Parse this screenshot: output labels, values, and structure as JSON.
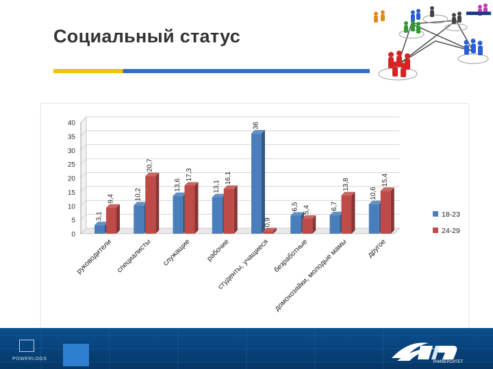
{
  "slide": {
    "title": "Социальный статус"
  },
  "footer": {
    "powerlog_text": "POWERLOGS",
    "logo_sub": "УНИВЕРСИТЕТ"
  },
  "chart_data": {
    "type": "bar",
    "categories": [
      "руководители",
      "специалисты",
      "служащие",
      "рабочие",
      "студенты, учащиеся",
      "безработные",
      "домохозяйки, молодые мамы",
      "другое"
    ],
    "series": [
      {
        "name": "18-23",
        "color": "#4a7ebb",
        "values": [
          3.1,
          10.2,
          13.6,
          13.1,
          36,
          6.5,
          6.7,
          10.6
        ],
        "labels": [
          "3,1",
          "10,2",
          "13,6",
          "13,1",
          "36",
          "6,5",
          "6,7",
          "10,6"
        ]
      },
      {
        "name": "24-29",
        "color": "#be4b48",
        "values": [
          9.4,
          20.7,
          17.3,
          16.1,
          0.9,
          5.4,
          13.8,
          15.4
        ],
        "labels": [
          "9,4",
          "20,7",
          "17,3",
          "16,1",
          "0,9",
          "5,4",
          "13,8",
          "15,4"
        ]
      }
    ],
    "ylim": [
      0,
      40
    ],
    "yticks": [
      0,
      5,
      10,
      15,
      20,
      25,
      30,
      35,
      40
    ],
    "grid": true,
    "legend": "right"
  }
}
